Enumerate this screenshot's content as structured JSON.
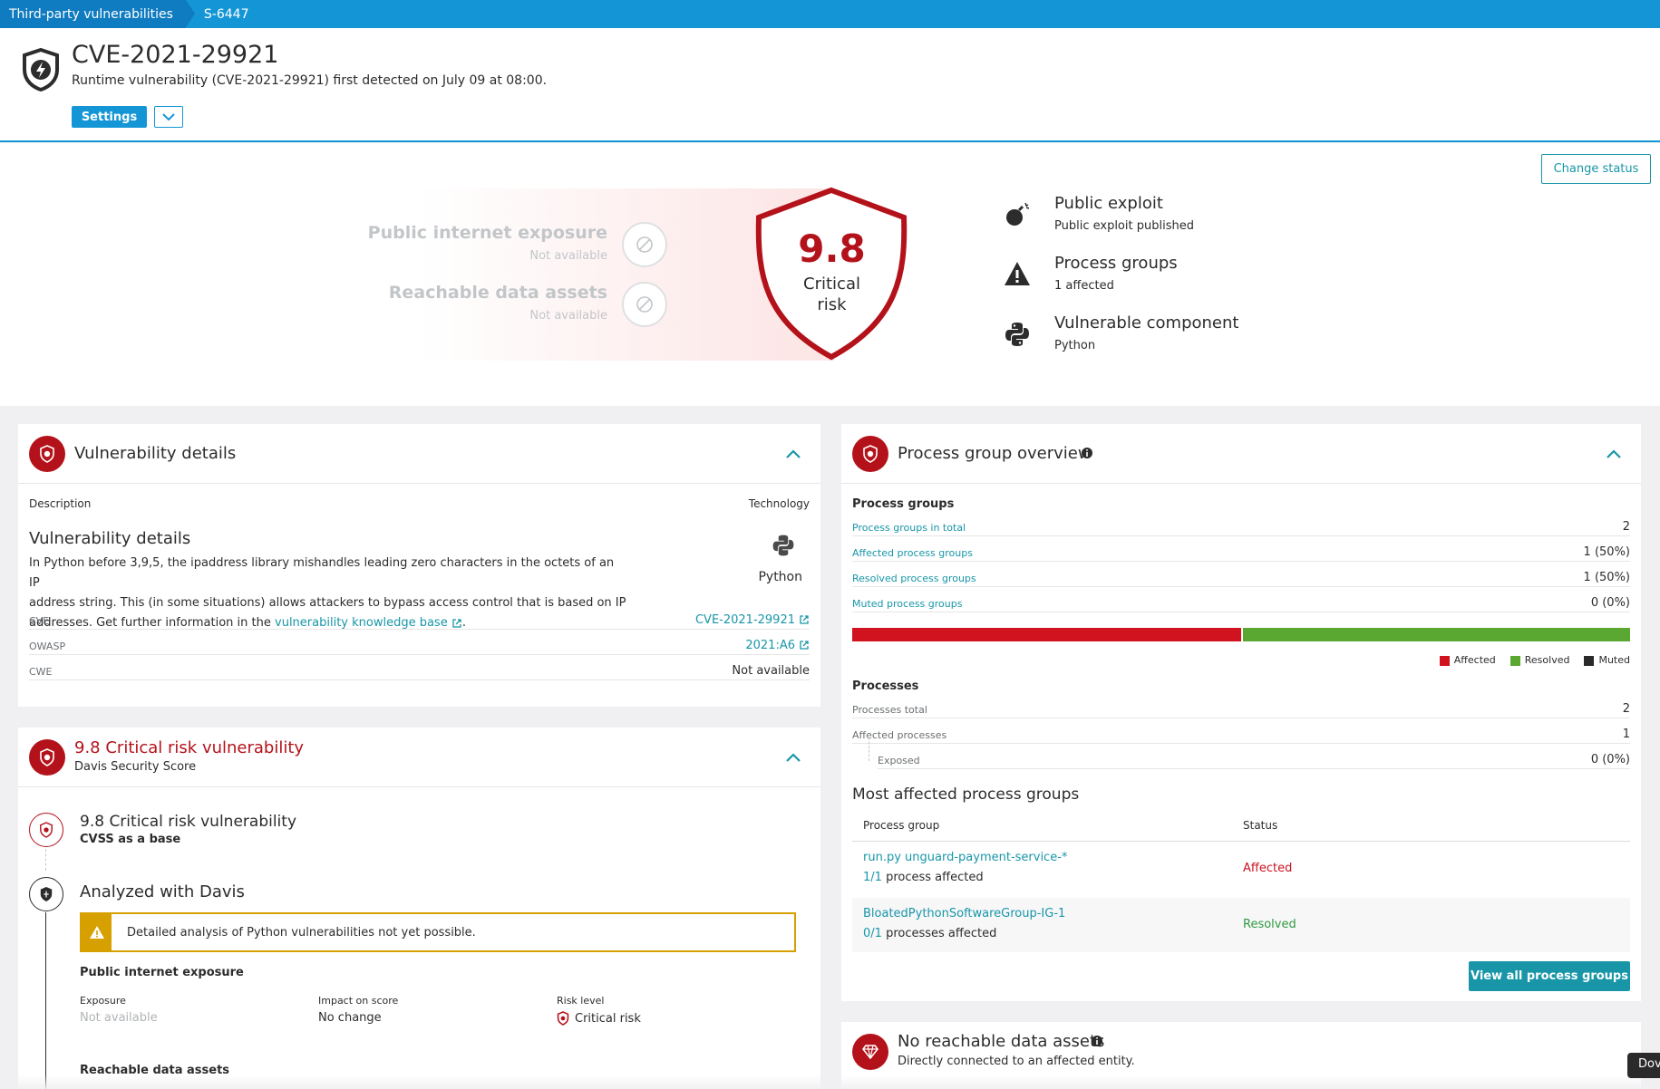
{
  "breadcrumb": {
    "items": [
      "Third-party vulnerabilities",
      "S-6447"
    ]
  },
  "header": {
    "title": "CVE-2021-29921",
    "subtitle": "Runtime vulnerability (CVE-2021-29921) first detected on July 09 at 08:00.",
    "settings_label": "Settings"
  },
  "summary": {
    "change_status_label": "Change status",
    "public_internet_exposure": {
      "label": "Public internet exposure",
      "value": "Not available"
    },
    "reachable_data_assets": {
      "label": "Reachable data assets",
      "value": "Not available"
    },
    "score": {
      "value": "9.8",
      "level_line1": "Critical",
      "level_line2": "risk"
    },
    "facts": [
      {
        "icon": "bomb-icon",
        "title": "Public exploit",
        "subtitle": "Public exploit published"
      },
      {
        "icon": "warning-icon",
        "title": "Process groups",
        "subtitle": "1 affected"
      },
      {
        "icon": "python-icon",
        "title": "Vulnerable component",
        "subtitle": "Python"
      }
    ]
  },
  "vuln_details": {
    "title": "Vulnerability details",
    "description_label": "Description",
    "technology_label": "Technology",
    "heading": "Vulnerability details",
    "text_line1": "In Python before 3,9,5, the ipaddress library mishandles leading zero characters in the octets of an IP",
    "text_line2": "address string. This (in some situations) allows attackers to bypass access control that is based on IP",
    "text_line3_prefix": "addresses. Get further information in the",
    "kb_link": "vulnerability knowledge base",
    "technology": "Python",
    "rows": [
      {
        "key": "CVE",
        "value": "CVE-2021-29921"
      },
      {
        "key": "OWASP",
        "value": "2021:A6"
      },
      {
        "key": "CWE",
        "value": "Not available"
      }
    ]
  },
  "risk_card": {
    "title": "9.8 Critical risk vulnerability",
    "subtitle": "Davis Security Score",
    "step1_title": "9.8 Critical risk vulnerability",
    "step1_sub": "CVSS as a base",
    "step2_title": "Analyzed with Davis",
    "warning": "Detailed analysis of Python vulnerabilities not yet possible.",
    "pie_heading": "Public internet exposure",
    "exposure_label": "Exposure",
    "exposure_value": "Not available",
    "impact_label": "Impact on score",
    "impact_value": "No change",
    "risk_label": "Risk level",
    "risk_value": "Critical risk",
    "rda_heading": "Reachable data assets"
  },
  "pg_overview": {
    "title": "Process group overview",
    "process_groups_heading": "Process groups",
    "pg_rows": [
      {
        "key": "Process groups in total",
        "value": "2"
      },
      {
        "key": "Affected process groups",
        "value": "1 (50%)"
      },
      {
        "key": "Resolved process groups",
        "value": "1 (50%)"
      },
      {
        "key": "Muted process groups",
        "value": "0 (0%)"
      }
    ],
    "bar": {
      "affected_fraction": 0.5,
      "resolved_fraction": 0.5,
      "muted_fraction": 0.0,
      "affected_color": "#d0131f",
      "resolved_color": "#5aa832",
      "muted_color": "#2a2a2a"
    },
    "legend": [
      "Affected",
      "Resolved",
      "Muted"
    ],
    "processes_heading": "Processes",
    "proc_rows": [
      {
        "key": "Processes total",
        "value": "2"
      },
      {
        "key": "Affected processes",
        "value": "1"
      },
      {
        "key": "Exposed",
        "value": "0 (0%)"
      }
    ],
    "most_affected_heading": "Most affected process groups",
    "col_process_group": "Process group",
    "col_status": "Status",
    "groups": [
      {
        "name": "run.py unguard-payment-service-*",
        "count": "1/1",
        "count_suffix": "process affected",
        "status": "Affected"
      },
      {
        "name": "BloatedPythonSoftwareGroup-IG-1",
        "count": "0/1",
        "count_suffix": "processes affected",
        "status": "Resolved"
      }
    ],
    "view_all_label": "View all process groups"
  },
  "data_assets": {
    "title": "No reachable data assets",
    "subtitle": "Directly connected to an affected entity."
  },
  "dock_label": "Dov"
}
